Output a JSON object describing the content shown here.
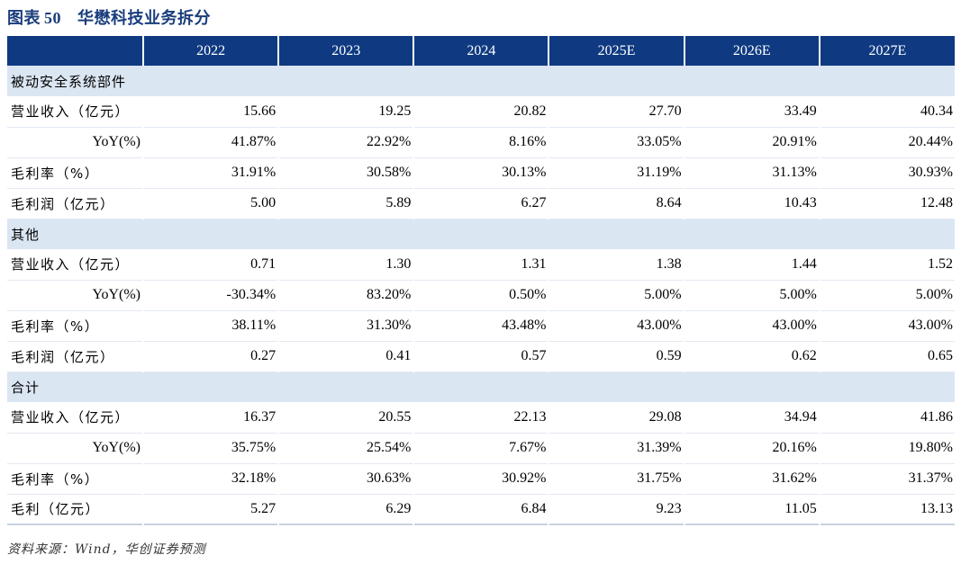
{
  "title": {
    "label": "图表",
    "number": "50",
    "text": "华懋科技业务拆分"
  },
  "columns": [
    "",
    "2022",
    "2023",
    "2024",
    "2025E",
    "2026E",
    "2027E"
  ],
  "sections": [
    {
      "name": "被动安全系统部件",
      "rows": [
        {
          "label": "营业收入（亿元）",
          "type": "normal",
          "values": [
            "15.66",
            "19.25",
            "20.82",
            "27.70",
            "33.49",
            "40.34"
          ]
        },
        {
          "label": "YoY(%)",
          "type": "yoy",
          "values": [
            "41.87%",
            "22.92%",
            "8.16%",
            "33.05%",
            "20.91%",
            "20.44%"
          ]
        },
        {
          "label": "毛利率（%）",
          "type": "normal",
          "values": [
            "31.91%",
            "30.58%",
            "30.13%",
            "31.19%",
            "31.13%",
            "30.93%"
          ]
        },
        {
          "label": "毛利润（亿元）",
          "type": "normal",
          "values": [
            "5.00",
            "5.89",
            "6.27",
            "8.64",
            "10.43",
            "12.48"
          ]
        }
      ]
    },
    {
      "name": "其他",
      "rows": [
        {
          "label": "营业收入（亿元）",
          "type": "normal",
          "values": [
            "0.71",
            "1.30",
            "1.31",
            "1.38",
            "1.44",
            "1.52"
          ]
        },
        {
          "label": "YoY(%)",
          "type": "yoy",
          "values": [
            "-30.34%",
            "83.20%",
            "0.50%",
            "5.00%",
            "5.00%",
            "5.00%"
          ]
        },
        {
          "label": "毛利率（%）",
          "type": "normal",
          "values": [
            "38.11%",
            "31.30%",
            "43.48%",
            "43.00%",
            "43.00%",
            "43.00%"
          ]
        },
        {
          "label": "毛利润（亿元）",
          "type": "normal",
          "values": [
            "0.27",
            "0.41",
            "0.57",
            "0.59",
            "0.62",
            "0.65"
          ]
        }
      ]
    },
    {
      "name": "合计",
      "rows": [
        {
          "label": "营业收入（亿元）",
          "type": "normal",
          "values": [
            "16.37",
            "20.55",
            "22.13",
            "29.08",
            "34.94",
            "41.86"
          ]
        },
        {
          "label": "YoY(%)",
          "type": "yoy",
          "values": [
            "35.75%",
            "25.54%",
            "7.67%",
            "31.39%",
            "20.16%",
            "19.80%"
          ]
        },
        {
          "label": "毛利率（%）",
          "type": "normal",
          "values": [
            "32.18%",
            "30.63%",
            "30.92%",
            "31.75%",
            "31.62%",
            "31.37%"
          ]
        },
        {
          "label": "毛利（亿元）",
          "type": "normal",
          "values": [
            "5.27",
            "6.29",
            "6.84",
            "9.23",
            "11.05",
            "13.13"
          ]
        }
      ]
    }
  ],
  "source": "资料来源：Wind，华创证券预测",
  "colors": {
    "header_bg": "#0f3a82",
    "section_bg": "#dbe6f3",
    "title": "#1a3d7c"
  }
}
